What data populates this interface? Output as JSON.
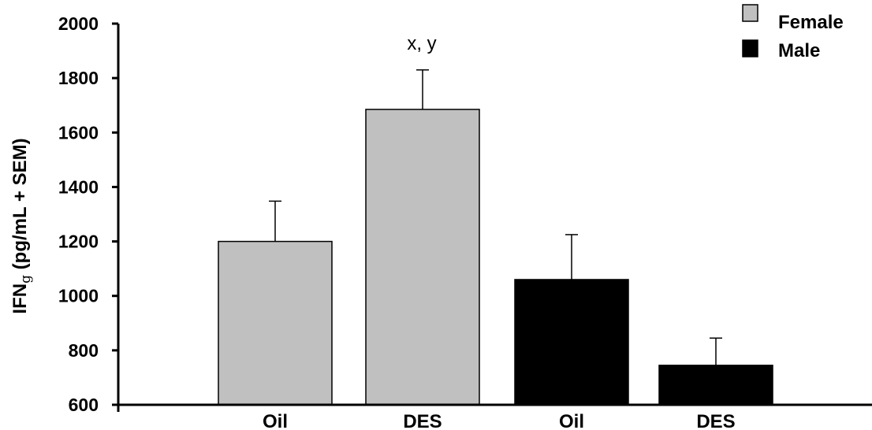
{
  "chart_data": {
    "type": "bar",
    "title": "",
    "xlabel": "",
    "ylabel": "IFNg (pg/mL + SEM)",
    "ylabel_parts": {
      "main": "IFN",
      "subscript": "g",
      "rest": " (pg/mL + SEM)"
    },
    "ylim": [
      600,
      2000
    ],
    "yticks": [
      "600",
      "800",
      "1000",
      "1200",
      "1400",
      "1600",
      "1800",
      "2000"
    ],
    "categories": [
      "Oil",
      "DES",
      "Oil",
      "DES"
    ],
    "series": [
      {
        "name": "Female",
        "color": "#c0c0c0",
        "values": [
          1200,
          1685,
          null,
          null
        ],
        "errors": [
          148,
          145,
          null,
          null
        ]
      },
      {
        "name": "Male",
        "color": "#000000",
        "values": [
          null,
          null,
          1060,
          745
        ],
        "errors": [
          null,
          null,
          165,
          100
        ]
      }
    ],
    "annotations": [
      {
        "text": "x, y",
        "category_index": 1
      }
    ],
    "legend_position": "top-right",
    "grid": false
  }
}
